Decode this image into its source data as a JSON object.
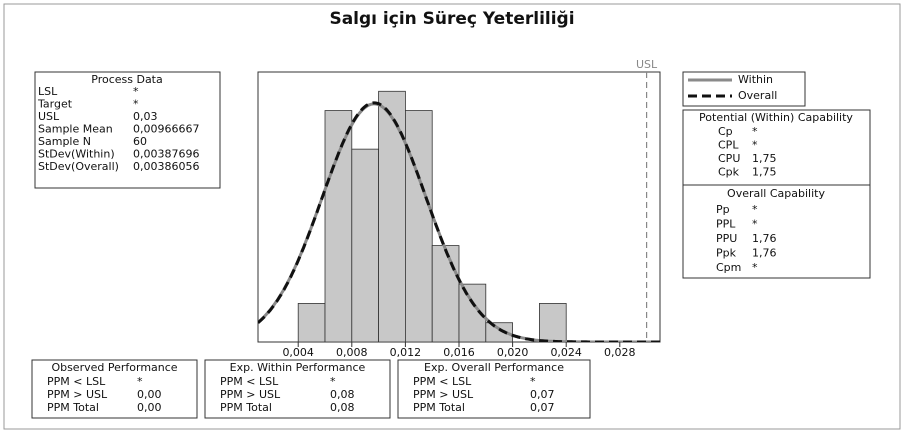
{
  "title": "Salgı için Süreç Yeterliliği",
  "chart_data": {
    "type": "histogram",
    "bins": [
      0.004,
      0.006,
      0.008,
      0.01,
      0.012,
      0.014,
      0.016,
      0.018,
      0.02,
      0.022,
      0.024
    ],
    "counts": [
      2,
      12,
      10,
      13,
      12,
      5,
      3,
      1,
      0,
      2
    ],
    "color": "#c8c8c8",
    "xlim": [
      0.001,
      0.031
    ],
    "ylim": [
      0,
      14
    ],
    "xticks": [
      {
        "value": 0.004,
        "label": "0,004"
      },
      {
        "value": 0.008,
        "label": "0,008"
      },
      {
        "value": 0.012,
        "label": "0,012"
      },
      {
        "value": 0.016,
        "label": "0,016"
      },
      {
        "value": 0.02,
        "label": "0,020"
      },
      {
        "value": 0.024,
        "label": "0,024"
      },
      {
        "value": 0.028,
        "label": "0,028"
      }
    ],
    "usl": {
      "value": 0.03,
      "label": "USL"
    },
    "n": 60,
    "series": [
      {
        "name": "Within",
        "color": "#8a8a8a",
        "dashed": false,
        "mean": 0.00966667,
        "sd": 0.00387696
      },
      {
        "name": "Overall",
        "color": "#111111",
        "dashed": true,
        "mean": 0.00966667,
        "sd": 0.00386056
      }
    ]
  },
  "process_data": {
    "title": "Process Data",
    "rows": [
      [
        "LSL",
        "*"
      ],
      [
        "Target",
        "*"
      ],
      [
        "USL",
        "0,03"
      ],
      [
        "Sample Mean",
        "0,00966667"
      ],
      [
        "Sample N",
        "60"
      ],
      [
        "StDev(Within)",
        "0,00387696"
      ],
      [
        "StDev(Overall)",
        "0,00386056"
      ]
    ]
  },
  "within_capability": {
    "title": "Potential (Within) Capability",
    "rows": [
      [
        "Cp",
        "*"
      ],
      [
        "CPL",
        "*"
      ],
      [
        "CPU",
        "1,75"
      ],
      [
        "Cpk",
        "1,75"
      ]
    ]
  },
  "overall_capability": {
    "title": "Overall Capability",
    "rows": [
      [
        "Pp",
        "*"
      ],
      [
        "PPL",
        "*"
      ],
      [
        "PPU",
        "1,76"
      ],
      [
        "Ppk",
        "1,76"
      ],
      [
        "Cpm",
        "*"
      ]
    ]
  },
  "performance": [
    {
      "title": "Observed Performance",
      "rows": [
        [
          "PPM < LSL",
          "*"
        ],
        [
          "PPM > USL",
          "0,00"
        ],
        [
          "PPM Total",
          "0,00"
        ]
      ]
    },
    {
      "title": "Exp. Within Performance",
      "rows": [
        [
          "PPM < LSL",
          "*"
        ],
        [
          "PPM > USL",
          "0,08"
        ],
        [
          "PPM Total",
          "0,08"
        ]
      ]
    },
    {
      "title": "Exp. Overall Performance",
      "rows": [
        [
          "PPM < LSL",
          "*"
        ],
        [
          "PPM > USL",
          "0,07"
        ],
        [
          "PPM Total",
          "0,07"
        ]
      ]
    }
  ]
}
